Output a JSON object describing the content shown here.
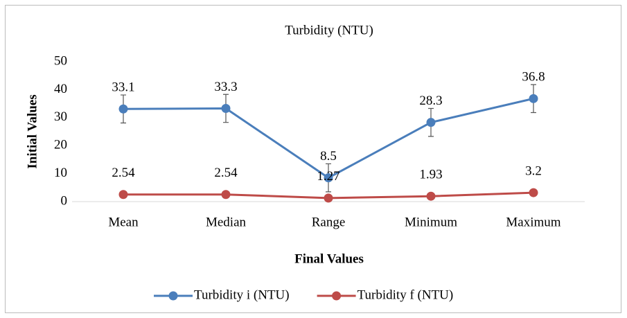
{
  "chart_data": {
    "type": "line",
    "title": "Turbidity (NTU)",
    "x_label": "Final Values",
    "y_label": "Initial Values",
    "categories": [
      "Mean",
      "Median",
      "Range",
      "Minimum",
      "Maximum"
    ],
    "series": [
      {
        "name": "Turbidity i (NTU)",
        "color": "#4a7ebb",
        "values": [
          33.1,
          33.3,
          8.5,
          28.3,
          36.8
        ],
        "errors": [
          5,
          5,
          5,
          5,
          5
        ]
      },
      {
        "name": "Turbidity f (NTU)",
        "color": "#be4b48",
        "values": [
          2.54,
          2.54,
          1.27,
          1.93,
          3.2
        ]
      }
    ],
    "ylim": [
      0,
      50
    ],
    "yticks": [
      0,
      10,
      20,
      30,
      40,
      50
    ],
    "grid": false,
    "legend": "bottom"
  }
}
